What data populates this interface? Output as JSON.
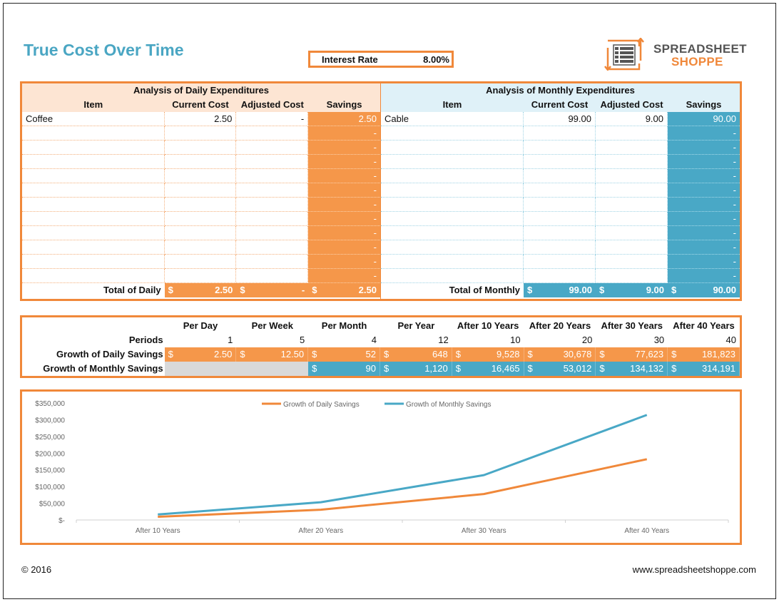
{
  "title": "True Cost Over Time",
  "interest": {
    "label": "Interest Rate",
    "value": "8.00%"
  },
  "logo": {
    "line1": "SPREADSHEET",
    "line2": "SHOPPE"
  },
  "daily": {
    "title": "Analysis of Daily Expenditures",
    "headers": [
      "Item",
      "Current Cost",
      "Adjusted Cost",
      "Savings"
    ],
    "rows": [
      [
        "Coffee",
        "2.50",
        "-",
        "2.50"
      ],
      [
        "",
        "",
        "",
        "-"
      ],
      [
        "",
        "",
        "",
        "-"
      ],
      [
        "",
        "",
        "",
        "-"
      ],
      [
        "",
        "",
        "",
        "-"
      ],
      [
        "",
        "",
        "",
        "-"
      ],
      [
        "",
        "",
        "",
        "-"
      ],
      [
        "",
        "",
        "",
        "-"
      ],
      [
        "",
        "",
        "",
        "-"
      ],
      [
        "",
        "",
        "",
        "-"
      ],
      [
        "",
        "",
        "",
        "-"
      ],
      [
        "",
        "",
        "",
        "-"
      ]
    ],
    "total": {
      "label": "Total of Daily",
      "currency": "$",
      "current": "2.50",
      "adjusted": "-",
      "savings": "2.50"
    }
  },
  "monthly": {
    "title": "Analysis of Monthly Expenditures",
    "headers": [
      "Item",
      "Current Cost",
      "Adjusted Cost",
      "Savings"
    ],
    "rows": [
      [
        "Cable",
        "99.00",
        "9.00",
        "90.00"
      ],
      [
        "",
        "",
        "",
        "-"
      ],
      [
        "",
        "",
        "",
        "-"
      ],
      [
        "",
        "",
        "",
        "-"
      ],
      [
        "",
        "",
        "",
        "-"
      ],
      [
        "",
        "",
        "",
        "-"
      ],
      [
        "",
        "",
        "",
        "-"
      ],
      [
        "",
        "",
        "",
        "-"
      ],
      [
        "",
        "",
        "",
        "-"
      ],
      [
        "",
        "",
        "",
        "-"
      ],
      [
        "",
        "",
        "",
        "-"
      ],
      [
        "",
        "",
        "",
        "-"
      ]
    ],
    "total": {
      "label": "Total of Monthly",
      "currency": "$",
      "current": "99.00",
      "adjusted": "9.00",
      "savings": "90.00"
    }
  },
  "growth": {
    "columns": [
      "Per Day",
      "Per Week",
      "Per Month",
      "Per Year",
      "After 10 Years",
      "After 20 Years",
      "After 30 Years",
      "After 40 Years"
    ],
    "periods_label": "Periods",
    "periods": [
      "1",
      "5",
      "4",
      "12",
      "10",
      "20",
      "30",
      "40"
    ],
    "daily_label": "Growth of Daily Savings",
    "daily": [
      "2.50",
      "12.50",
      "52",
      "648",
      "9,528",
      "30,678",
      "77,623",
      "181,823"
    ],
    "monthly_label": "Growth of Monthly Savings",
    "monthly": [
      "",
      "",
      "90",
      "1,120",
      "16,465",
      "53,012",
      "134,132",
      "314,191"
    ],
    "currency": "$"
  },
  "chart_data": {
    "type": "line",
    "categories": [
      "After 10 Years",
      "After 20 Years",
      "After 30 Years",
      "After 40 Years"
    ],
    "series": [
      {
        "name": "Growth of Daily Savings",
        "values": [
          9528,
          30678,
          77623,
          181823
        ],
        "color": "#f0883a"
      },
      {
        "name": "Growth of Monthly Savings",
        "values": [
          16465,
          53012,
          134132,
          314191
        ],
        "color": "#49a8c6"
      }
    ],
    "yticks": [
      "$-",
      "$50,000",
      "$100,000",
      "$150,000",
      "$200,000",
      "$250,000",
      "$300,000",
      "$350,000"
    ],
    "ylim": [
      0,
      350000
    ],
    "legend": "top-center",
    "grid": false
  },
  "footer": {
    "copyright": "© 2016",
    "url": "www.spreadsheetshoppe.com"
  }
}
